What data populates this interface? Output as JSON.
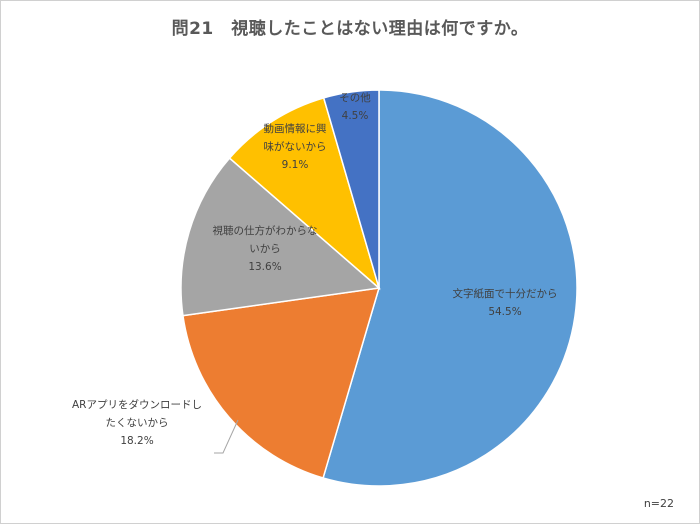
{
  "chart_data": {
    "type": "pie",
    "title": "問21　視聴したことはない理由は何ですか。",
    "note": "n=22",
    "slices": [
      {
        "label_lines": [
          "文字紙面で十分だから"
        ],
        "value": 54.5,
        "value_label": "54.5%",
        "color": "#5b9bd5"
      },
      {
        "label_lines": [
          "ARアプリをダウンロードし",
          "たくないから"
        ],
        "value": 18.2,
        "value_label": "18.2%",
        "color": "#ed7d31"
      },
      {
        "label_lines": [
          "視聴の仕方がわからな",
          "いから"
        ],
        "value": 13.6,
        "value_label": "13.6%",
        "color": "#a5a5a5"
      },
      {
        "label_lines": [
          "動画情報に興",
          "味がないから"
        ],
        "value": 9.1,
        "value_label": "9.1%",
        "color": "#ffc000"
      },
      {
        "label_lines": [
          "その他"
        ],
        "value": 4.5,
        "value_label": "4.5%",
        "color": "#4472c4"
      }
    ]
  }
}
